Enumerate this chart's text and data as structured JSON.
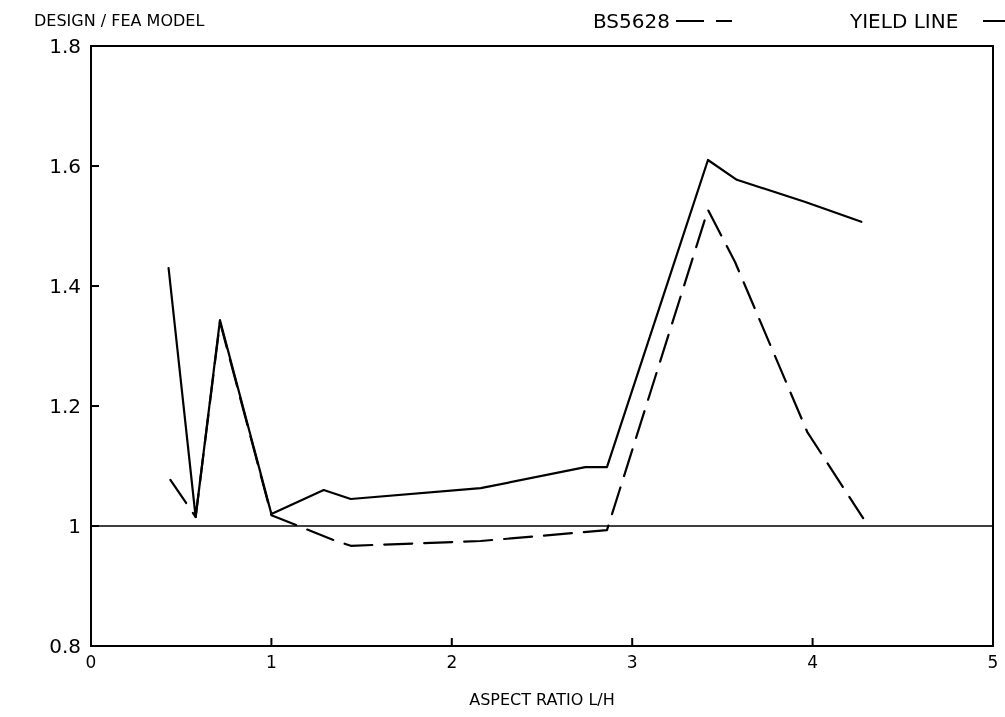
{
  "chart_data": {
    "type": "line",
    "ylabel": "DESIGN / FEA MODEL",
    "xlabel": "ASPECT RATIO  L/H",
    "xlim": [
      0,
      5
    ],
    "xticks": [
      0,
      1,
      2,
      3,
      4,
      5
    ],
    "ylim": [
      0.8,
      1.8
    ],
    "yticks": [
      0.8,
      1,
      1.2,
      1.4,
      1.6,
      1.8
    ],
    "ref_lines": [
      {
        "axis": "y",
        "value": 1,
        "color": "#000000",
        "line_style": "solid"
      }
    ],
    "legend": "top right",
    "grid": false,
    "marker": "none",
    "series": [
      {
        "name": "BS5628",
        "color": "#000000",
        "line_style": "dashed",
        "x": [
          0.44,
          0.58,
          0.715,
          1.0,
          1.34,
          1.44,
          2.16,
          2.86,
          3.42,
          3.57,
          3.97,
          4.28
        ],
        "values": [
          1.077,
          1.015,
          1.34,
          1.018,
          0.977,
          0.967,
          0.975,
          0.993,
          1.527,
          1.44,
          1.157,
          1.013
        ]
      },
      {
        "name": "YIELD LINE",
        "color": "#000000",
        "line_style": "solid",
        "x": [
          0.43,
          0.58,
          0.715,
          1.0,
          1.29,
          1.44,
          2.16,
          2.74,
          2.86,
          3.42,
          3.58,
          3.96,
          4.27
        ],
        "values": [
          1.43,
          1.015,
          1.343,
          1.02,
          1.06,
          1.045,
          1.063,
          1.098,
          1.098,
          1.61,
          1.577,
          1.54,
          1.507
        ]
      }
    ]
  }
}
